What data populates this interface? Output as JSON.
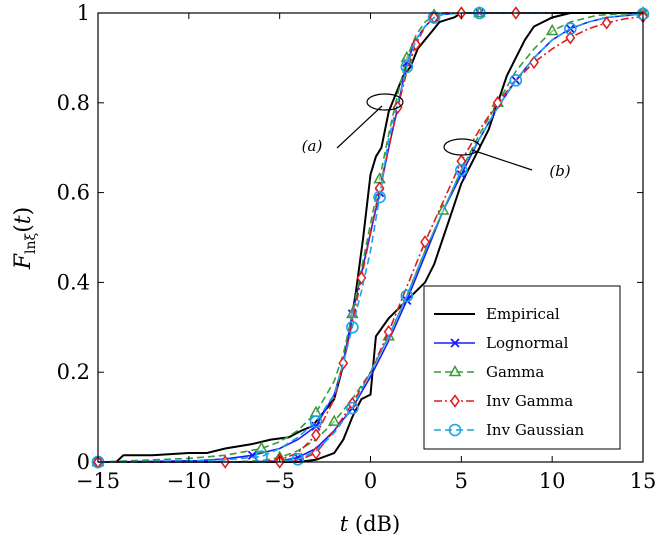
{
  "chart_data": {
    "type": "line",
    "xlabel": "t (dB)",
    "ylabel": "F_lnξ(t)",
    "xlim": [
      -15,
      15
    ],
    "ylim": [
      0,
      1
    ],
    "xticks": [
      "−15",
      "−10",
      "−5",
      "0",
      "5",
      "10",
      "15"
    ],
    "yticks": [
      "0",
      "0.2",
      "0.4",
      "0.6",
      "0.8",
      "1"
    ],
    "grid": false,
    "legend_position": "bottom-right",
    "annotations": [
      "(a)",
      "(b)"
    ],
    "series": [
      {
        "name": "Empirical",
        "color": "#000000",
        "dash": "solid",
        "marker": "none",
        "groups": [
          {
            "x": [
              -15,
              -14,
              -13.6,
              -12,
              -10,
              -9,
              -8,
              -6.5,
              -5.5,
              -4.5,
              -3.8,
              -3.2,
              -2.8,
              -2.4,
              -2,
              -1.6,
              -1.2,
              -0.8,
              -0.4,
              0,
              0.3,
              0.6,
              1,
              1.4,
              1.8,
              2.2,
              2.6,
              3,
              3.4,
              3.8,
              4.2,
              4.6,
              5,
              6,
              7,
              8,
              15
            ],
            "y": [
              0,
              0,
              0.015,
              0.015,
              0.02,
              0.02,
              0.03,
              0.04,
              0.05,
              0.055,
              0.07,
              0.08,
              0.1,
              0.12,
              0.14,
              0.2,
              0.28,
              0.38,
              0.5,
              0.64,
              0.68,
              0.7,
              0.78,
              0.82,
              0.86,
              0.88,
              0.92,
              0.94,
              0.96,
              0.98,
              0.985,
              0.99,
              1,
              1,
              1,
              1,
              1
            ]
          },
          {
            "x": [
              -15,
              -6,
              -4,
              -3,
              -2,
              -1.5,
              -1,
              -0.5,
              0,
              0.3,
              1,
              1.5,
              2,
              2.5,
              3,
              3.5,
              4,
              4.5,
              5,
              5.5,
              6,
              6.5,
              7,
              7.5,
              8,
              8.5,
              9,
              10,
              11,
              15
            ],
            "y": [
              0,
              0,
              0,
              0.005,
              0.02,
              0.05,
              0.1,
              0.14,
              0.15,
              0.28,
              0.32,
              0.34,
              0.36,
              0.38,
              0.4,
              0.44,
              0.5,
              0.56,
              0.62,
              0.66,
              0.7,
              0.74,
              0.8,
              0.86,
              0.9,
              0.94,
              0.97,
              0.99,
              1,
              1
            ]
          }
        ]
      },
      {
        "name": "Lognormal",
        "color": "#1a1aff",
        "dash": "solid",
        "marker": "x",
        "groups": [
          {
            "x": [
              -15,
              -9.5,
              -8,
              -6.5,
              -5,
              -4,
              -3,
              -2,
              -1.5,
              -1,
              -0.5,
              0,
              0.5,
              1,
              1.5,
              2,
              2.5,
              3,
              3.5,
              4,
              5,
              6,
              8,
              10
            ],
            "y": [
              0,
              0.003,
              0.007,
              0.015,
              0.03,
              0.05,
              0.08,
              0.15,
              0.22,
              0.33,
              0.42,
              0.51,
              0.6,
              0.7,
              0.79,
              0.89,
              0.94,
              0.97,
              0.99,
              0.997,
              1,
              1,
              1,
              1
            ]
          },
          {
            "x": [
              -15,
              -7,
              -5,
              -4,
              -3,
              -2,
              -1,
              0,
              1,
              2,
              3,
              4,
              5,
              6,
              7,
              8,
              9,
              10,
              11,
              12,
              13,
              15
            ],
            "y": [
              0,
              0,
              0.002,
              0.01,
              0.03,
              0.07,
              0.12,
              0.19,
              0.27,
              0.36,
              0.46,
              0.56,
              0.64,
              0.72,
              0.79,
              0.85,
              0.9,
              0.94,
              0.965,
              0.98,
              0.99,
              0.998
            ]
          }
        ]
      },
      {
        "name": "Gamma",
        "color": "#3a9a3a",
        "dash": "dashed",
        "marker": "triangle",
        "groups": [
          {
            "x": [
              -15,
              -10,
              -8,
              -6,
              -5,
              -4,
              -3,
              -2,
              -1.5,
              -1,
              -0.5,
              0,
              0.5,
              1,
              1.5,
              2,
              2.5,
              3,
              3.5,
              4,
              5,
              6,
              8,
              10
            ],
            "y": [
              0,
              0.008,
              0.015,
              0.03,
              0.045,
              0.07,
              0.11,
              0.18,
              0.24,
              0.33,
              0.43,
              0.53,
              0.63,
              0.73,
              0.82,
              0.9,
              0.95,
              0.98,
              0.995,
              1,
              1,
              1,
              1,
              1
            ]
          },
          {
            "x": [
              -15,
              -8,
              -6,
              -5,
              -4,
              -3,
              -2,
              -1,
              0,
              1,
              2,
              3,
              4,
              5,
              6,
              7,
              8,
              9,
              10,
              11,
              12.5,
              15
            ],
            "y": [
              0,
              0,
              0.003,
              0.01,
              0.025,
              0.05,
              0.09,
              0.14,
              0.2,
              0.28,
              0.37,
              0.47,
              0.56,
              0.65,
              0.73,
              0.8,
              0.87,
              0.92,
              0.96,
              0.98,
              0.995,
              1
            ]
          }
        ]
      },
      {
        "name": "Inv Gamma",
        "color": "#e11a1a",
        "dash": "dashdot",
        "marker": "diamond",
        "groups": [
          {
            "x": [
              -15,
              -10,
              -8,
              -6,
              -5,
              -4,
              -3,
              -2,
              -1.5,
              -1,
              -0.5,
              0,
              0.5,
              1,
              1.5,
              2,
              2.5,
              3,
              3.5,
              4,
              5,
              6,
              8,
              10
            ],
            "y": [
              0,
              0,
              0,
              0.001,
              0.005,
              0.02,
              0.06,
              0.14,
              0.22,
              0.31,
              0.41,
              0.51,
              0.61,
              0.7,
              0.79,
              0.87,
              0.93,
              0.97,
              0.99,
              1,
              1,
              1,
              1,
              1
            ]
          },
          {
            "x": [
              -15,
              -6,
              -5,
              -4,
              -3,
              -2,
              -1,
              0,
              1,
              2,
              3,
              4,
              5,
              6,
              7,
              8,
              9,
              10,
              11,
              12,
              13,
              14,
              15
            ],
            "y": [
              0,
              0,
              0,
              0.003,
              0.02,
              0.07,
              0.13,
              0.2,
              0.29,
              0.39,
              0.49,
              0.58,
              0.67,
              0.74,
              0.8,
              0.85,
              0.89,
              0.92,
              0.945,
              0.965,
              0.978,
              0.987,
              0.992
            ]
          }
        ]
      },
      {
        "name": "Inv Gaussian",
        "color": "#1aa3e8",
        "dash": "dashed",
        "marker": "circle",
        "groups": [
          {
            "x": [
              -15,
              -10,
              -8,
              -6,
              -5,
              -4,
              -3,
              -2,
              -1.5,
              -1,
              -0.5,
              0,
              0.5,
              1,
              1.5,
              2,
              2.5,
              3,
              3.5,
              4,
              5,
              6,
              8,
              10
            ],
            "y": [
              0,
              0.002,
              0.005,
              0.012,
              0.03,
              0.055,
              0.09,
              0.15,
              0.22,
              0.3,
              0.38,
              0.47,
              0.59,
              0.72,
              0.8,
              0.88,
              0.94,
              0.97,
              0.99,
              0.997,
              1,
              1,
              1,
              1
            ]
          },
          {
            "x": [
              -15,
              -6,
              -5,
              -4,
              -3,
              -2,
              -1,
              0,
              1,
              2,
              3,
              4,
              5,
              6,
              7,
              8,
              9,
              10,
              11,
              12,
              13,
              15
            ],
            "y": [
              0,
              0,
              0.001,
              0.006,
              0.025,
              0.065,
              0.12,
              0.2,
              0.28,
              0.37,
              0.47,
              0.56,
              0.65,
              0.72,
              0.79,
              0.85,
              0.9,
              0.94,
              0.965,
              0.98,
              0.99,
              0.998
            ]
          }
        ]
      }
    ]
  }
}
